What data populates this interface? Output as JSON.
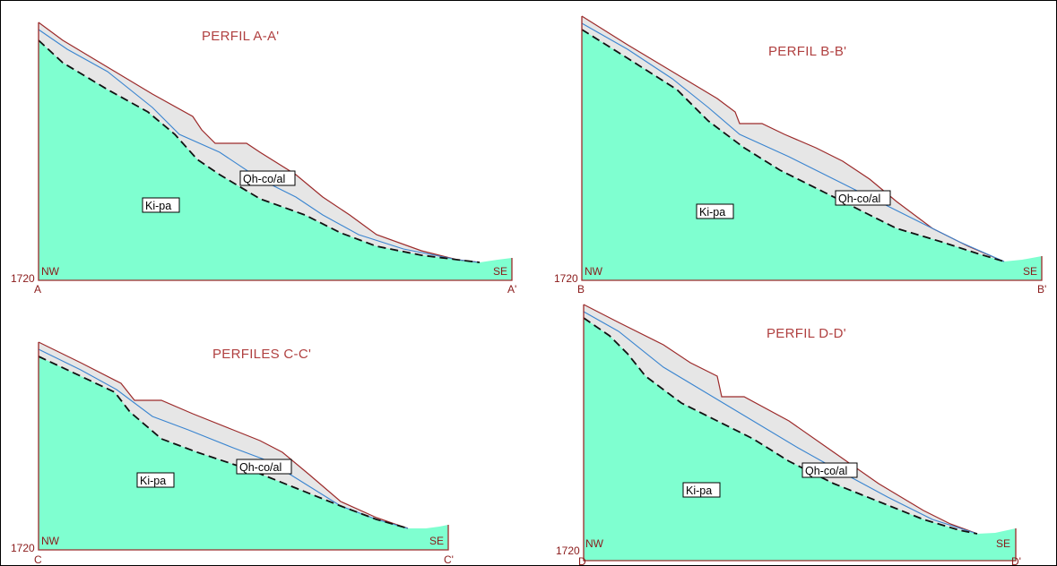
{
  "profiles": [
    {
      "title": "PERFIL A-A'",
      "start": "A",
      "end": "A'",
      "left_dir": "NW",
      "right_dir": "SE",
      "elevation": "1720",
      "unit_bedrock": "Ki-pa",
      "unit_deposit": "Qh-co/al"
    },
    {
      "title": "PERFIL B-B'",
      "start": "B",
      "end": "B'",
      "left_dir": "NW",
      "right_dir": "SE",
      "elevation": "1720",
      "unit_bedrock": "Ki-pa",
      "unit_deposit": "Qh-co/al"
    },
    {
      "title": "PERFILES C-C'",
      "start": "C",
      "end": "C'",
      "left_dir": "NW",
      "right_dir": "SE",
      "elevation": "1720",
      "unit_bedrock": "Ki-pa",
      "unit_deposit": "Qh-co/al"
    },
    {
      "title": "PERFIL D-D'",
      "start": "D",
      "end": "D'",
      "left_dir": "NW",
      "right_dir": "SE",
      "elevation": "1720",
      "unit_bedrock": "Ki-pa",
      "unit_deposit": "Qh-co/al"
    }
  ],
  "colors": {
    "bedrock_fill": "#7fffd0",
    "deposit_fill": "#e6e6e6",
    "topography": "#9c2a2a",
    "water_table": "#3a85d0",
    "contact": "#111111",
    "frame": "#9c2a2a"
  }
}
